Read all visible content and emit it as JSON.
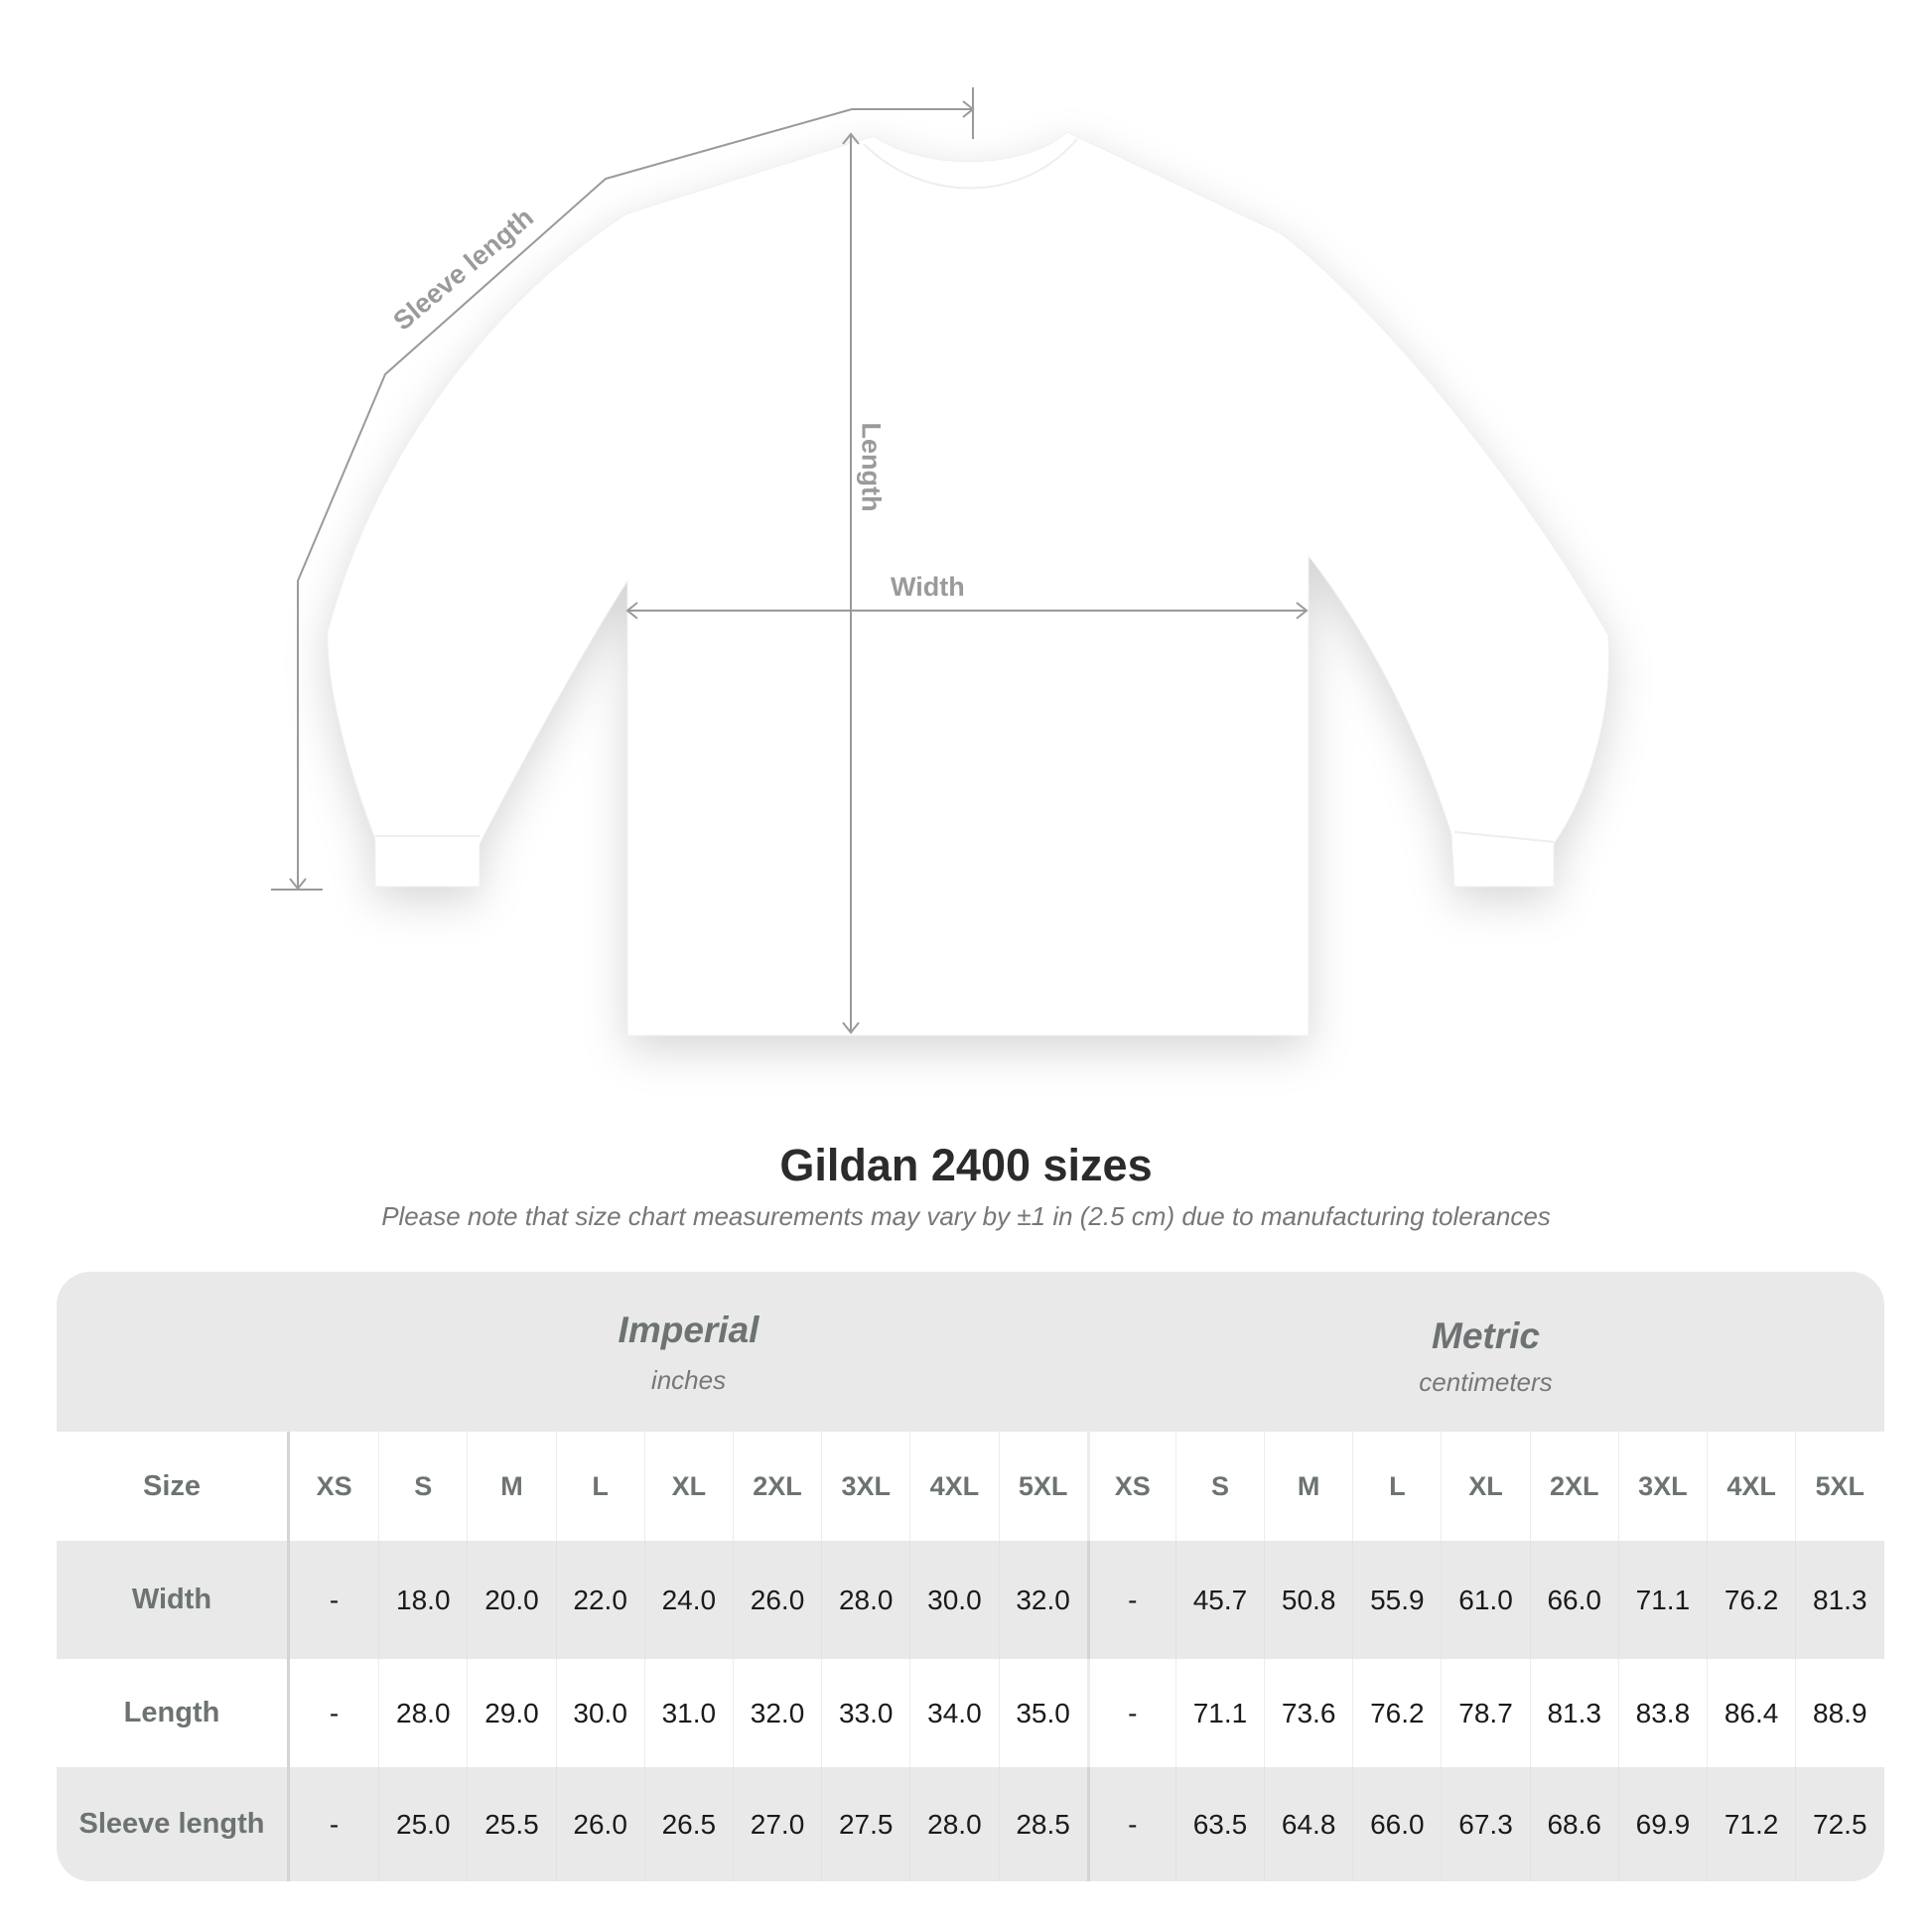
{
  "diagram": {
    "sleeve_label": "Sleeve length",
    "length_label": "Length",
    "width_label": "Width",
    "shirt_color": "#ffffff",
    "line_color": "#9a9a9a"
  },
  "title": "Gildan 2400 sizes",
  "subtitle": "Please note that size chart measurements may vary by ±1 in (2.5 cm) due to manufacturing tolerances",
  "table": {
    "imperial": {
      "name": "Imperial",
      "unit": "inches"
    },
    "metric": {
      "name": "Metric",
      "unit": "centimeters"
    },
    "size_label": "Size",
    "imperial_sizes": [
      "XS",
      "S",
      "M",
      "L",
      "XL",
      "2XL",
      "3XL",
      "4XL",
      "5XL"
    ],
    "metric_sizes": [
      "XS",
      "S",
      "M",
      "L",
      "XL",
      "2XL",
      "3XL",
      "4XL",
      "5XL"
    ],
    "rows": [
      {
        "label": "Width",
        "imperial": [
          "-",
          "18.0",
          "20.0",
          "22.0",
          "24.0",
          "26.0",
          "28.0",
          "30.0",
          "32.0"
        ],
        "metric": [
          "-",
          "45.7",
          "50.8",
          "55.9",
          "61.0",
          "66.0",
          "71.1",
          "76.2",
          "81.3"
        ]
      },
      {
        "label": "Length",
        "imperial": [
          "-",
          "28.0",
          "29.0",
          "30.0",
          "31.0",
          "32.0",
          "33.0",
          "34.0",
          "35.0"
        ],
        "metric": [
          "-",
          "71.1",
          "73.6",
          "76.2",
          "78.7",
          "81.3",
          "83.8",
          "86.4",
          "88.9"
        ]
      },
      {
        "label": "Sleeve length",
        "imperial": [
          "-",
          "25.0",
          "25.5",
          "26.0",
          "26.5",
          "27.0",
          "27.5",
          "28.0",
          "28.5"
        ],
        "metric": [
          "-",
          "63.5",
          "64.8",
          "66.0",
          "67.3",
          "68.6",
          "69.9",
          "71.2",
          "72.5"
        ]
      }
    ]
  }
}
